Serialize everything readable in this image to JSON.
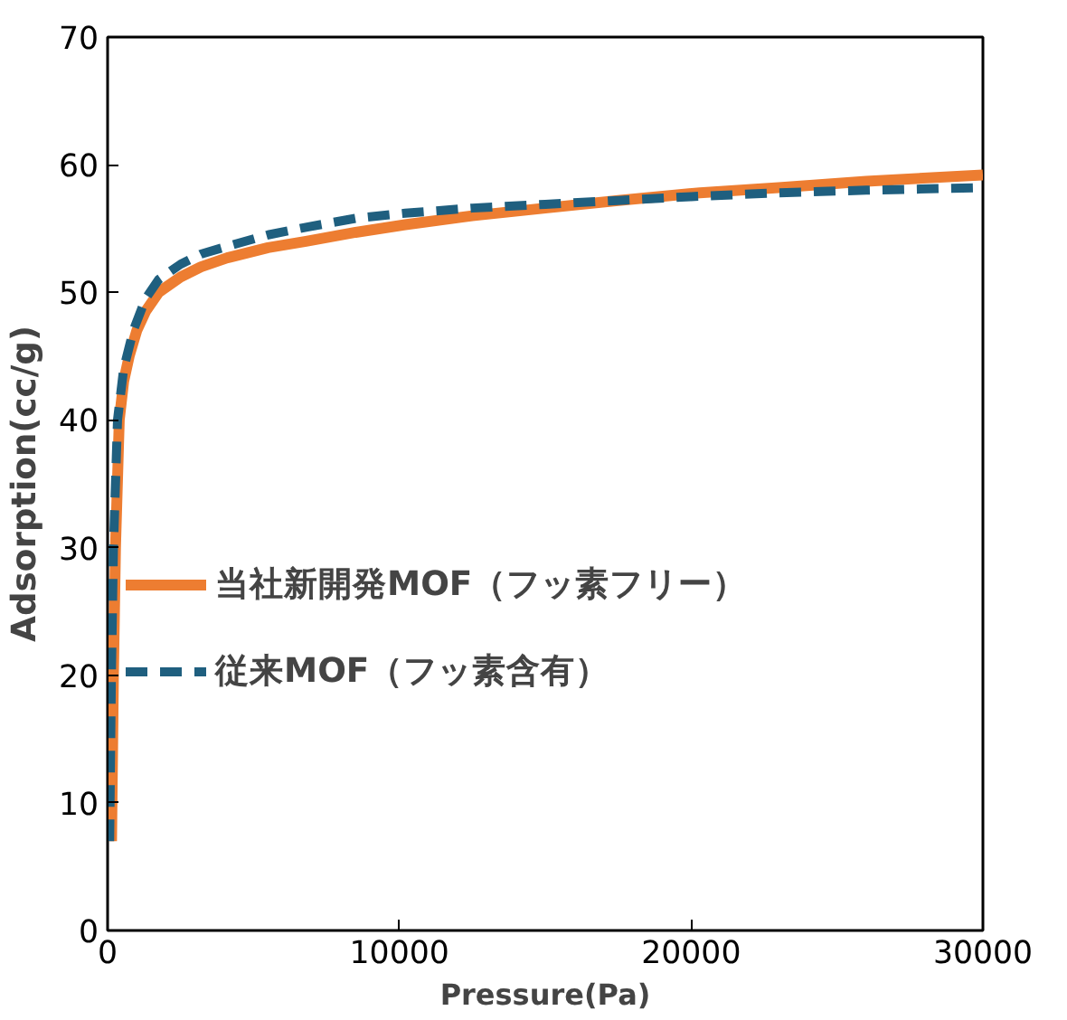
{
  "chart_data": {
    "type": "line",
    "xlabel": "Pressure(Pa)",
    "ylabel": "Adsorption(cc/g)",
    "xlim": [
      0,
      30000
    ],
    "ylim": [
      0,
      70
    ],
    "xticks": [
      0,
      10000,
      20000,
      30000
    ],
    "yticks": [
      0,
      10,
      20,
      30,
      40,
      50,
      60,
      70
    ],
    "grid": false,
    "legend": "left",
    "marker": "none",
    "series": [
      {
        "name": "当社新開発MOF（フッ素フリー）",
        "color": "#ed7d31",
        "line_style": "solid",
        "x": [
          135,
          200,
          270,
          400,
          550,
          740,
          1000,
          1300,
          1750,
          2500,
          3200,
          4100,
          5500,
          6800,
          8500,
          10200,
          12500,
          15000,
          17500,
          20300,
          23000,
          26000,
          30000
        ],
        "values": [
          7,
          20,
          30,
          40,
          43,
          45,
          47,
          48.5,
          50,
          51.2,
          52,
          52.7,
          53.5,
          54,
          54.7,
          55.3,
          56,
          56.6,
          57.2,
          57.8,
          58.2,
          58.7,
          59.2
        ]
      },
      {
        "name": "従来MOF（フッ素含有）",
        "color": "#1f5f7f",
        "line_style": "dashed",
        "x": [
          70,
          130,
          200,
          340,
          550,
          880,
          1300,
          1750,
          2500,
          3200,
          4100,
          5500,
          6800,
          8500,
          10200,
          12500,
          15000,
          17500,
          20000,
          23000,
          26000,
          30000
        ],
        "values": [
          7,
          20,
          30,
          40,
          44,
          47,
          49.5,
          51,
          52.2,
          53,
          53.6,
          54.5,
          55.1,
          55.8,
          56.2,
          56.6,
          56.9,
          57.2,
          57.5,
          57.8,
          58,
          58.2
        ]
      }
    ]
  }
}
